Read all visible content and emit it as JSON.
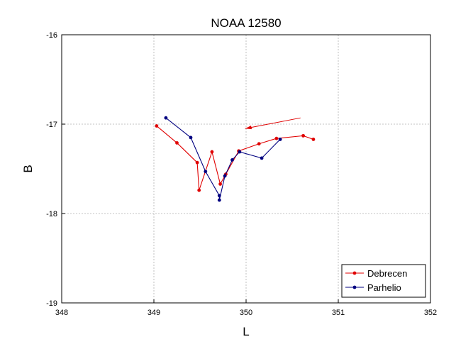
{
  "chart_data": {
    "type": "line",
    "title": "NOAA 12580",
    "xlabel": "L",
    "ylabel": "B",
    "xlim": [
      348,
      352
    ],
    "ylim": [
      -19,
      -16
    ],
    "xticks": [
      348,
      349,
      350,
      351,
      352
    ],
    "yticks": [
      -19,
      -18,
      -17,
      -16
    ],
    "xtick_labels": [
      "348",
      "349",
      "350",
      "351",
      "352"
    ],
    "ytick_labels": [
      "-19",
      "-18",
      "-17",
      "-16"
    ],
    "grid": true,
    "legend_position": "bottom-right",
    "series": [
      {
        "name": "Debrecen",
        "color": "#e00000",
        "marker": "circle",
        "x": [
          349.03,
          349.25,
          349.47,
          349.49,
          349.63,
          349.72,
          349.78,
          349.92,
          350.14,
          350.33,
          350.62,
          350.73
        ],
        "y": [
          -17.02,
          -17.21,
          -17.43,
          -17.74,
          -17.31,
          -17.67,
          -17.56,
          -17.3,
          -17.22,
          -17.16,
          -17.13,
          -17.17
        ]
      },
      {
        "name": "Parhelio",
        "color": "#000080",
        "marker": "circle",
        "x": [
          349.13,
          349.4,
          349.56,
          349.71,
          349.71,
          349.77,
          349.85,
          349.93,
          350.17,
          350.37
        ],
        "y": [
          -16.93,
          -17.15,
          -17.53,
          -17.8,
          -17.85,
          -17.58,
          -17.4,
          -17.31,
          -17.38,
          -17.17
        ]
      }
    ],
    "annotations": [
      {
        "type": "arrow",
        "color": "#e00000",
        "from": [
          350.59,
          -16.93
        ],
        "to": [
          349.99,
          -17.05
        ]
      }
    ]
  }
}
